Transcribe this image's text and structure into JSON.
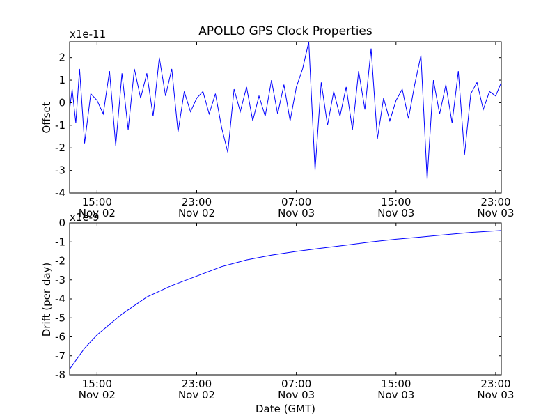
{
  "chart_data": [
    {
      "type": "line",
      "title": "APOLLO GPS Clock Properties",
      "ylabel": "Offset",
      "xlabel": "",
      "offset_label": "x1e-11",
      "ylim": [
        -4,
        2.7
      ],
      "yticks": [
        -4,
        -3,
        -2,
        -1,
        0,
        1,
        2
      ],
      "ytick_labels": [
        "-4",
        "-3",
        "-2",
        "-1",
        "0",
        "1",
        "2"
      ],
      "xticks": [
        {
          "hours": 15,
          "time": "15:00",
          "date": "Nov 02"
        },
        {
          "hours": 23,
          "time": "23:00",
          "date": "Nov 02"
        },
        {
          "hours": 31,
          "time": "07:00",
          "date": "Nov 03"
        },
        {
          "hours": 39,
          "time": "15:00",
          "date": "Nov 03"
        },
        {
          "hours": 47,
          "time": "23:00",
          "date": "Nov 03"
        }
      ],
      "xlim_hours": [
        12.8,
        47.45
      ],
      "series": [
        {
          "name": "offset",
          "color": "#0000ff",
          "x_hours": [
            12.8,
            13.0,
            13.3,
            13.6,
            14.0,
            14.5,
            15.0,
            15.5,
            16.0,
            16.5,
            17.0,
            17.5,
            18.0,
            18.5,
            19.0,
            19.5,
            20.0,
            20.5,
            21.0,
            21.5,
            22.0,
            22.5,
            23.0,
            23.5,
            24.0,
            24.5,
            25.0,
            25.5,
            26.0,
            26.5,
            27.0,
            27.5,
            28.0,
            28.5,
            29.0,
            29.5,
            30.0,
            30.5,
            31.0,
            31.5,
            32.0,
            32.5,
            33.0,
            33.5,
            34.0,
            34.5,
            35.0,
            35.5,
            36.0,
            36.5,
            37.0,
            37.5,
            38.0,
            38.5,
            39.0,
            39.5,
            40.0,
            40.5,
            41.0,
            41.5,
            42.0,
            42.5,
            43.0,
            43.5,
            44.0,
            44.5,
            45.0,
            45.5,
            46.0,
            46.5,
            47.0,
            47.45
          ],
          "values": [
            -0.3,
            0.6,
            -0.9,
            1.5,
            -1.8,
            0.4,
            0.1,
            -0.5,
            1.4,
            -1.9,
            1.3,
            -1.2,
            1.5,
            0.2,
            1.3,
            -0.6,
            2.0,
            0.3,
            1.5,
            -1.3,
            0.5,
            -0.4,
            0.2,
            0.5,
            -0.5,
            0.4,
            -1.1,
            -2.2,
            0.6,
            -0.4,
            0.7,
            -0.8,
            0.3,
            -0.6,
            1.0,
            -0.5,
            0.8,
            -0.8,
            0.7,
            1.5,
            2.7,
            -3.0,
            0.9,
            -1.0,
            0.5,
            -0.6,
            0.7,
            -1.2,
            1.4,
            -0.3,
            2.4,
            -1.6,
            0.2,
            -0.8,
            0.1,
            0.6,
            -0.7,
            0.8,
            2.1,
            -3.4,
            1.0,
            -0.5,
            0.8,
            -0.9,
            1.4,
            -2.3,
            0.4,
            0.9,
            -0.3,
            0.5,
            0.3,
            0.9
          ]
        }
      ]
    },
    {
      "type": "line",
      "title": "",
      "ylabel": "Drift (per day)",
      "xlabel": "Date (GMT)",
      "offset_label": "x1e-9",
      "ylim": [
        -8,
        0
      ],
      "yticks": [
        -8,
        -7,
        -6,
        -5,
        -4,
        -3,
        -2,
        -1,
        0
      ],
      "ytick_labels": [
        "-8",
        "-7",
        "-6",
        "-5",
        "-4",
        "-3",
        "-2",
        "-1",
        "0"
      ],
      "xticks": [
        {
          "hours": 15,
          "time": "15:00",
          "date": "Nov 02"
        },
        {
          "hours": 23,
          "time": "23:00",
          "date": "Nov 02"
        },
        {
          "hours": 31,
          "time": "07:00",
          "date": "Nov 03"
        },
        {
          "hours": 39,
          "time": "15:00",
          "date": "Nov 03"
        },
        {
          "hours": 47,
          "time": "23:00",
          "date": "Nov 03"
        }
      ],
      "xlim_hours": [
        12.8,
        47.45
      ],
      "series": [
        {
          "name": "drift",
          "color": "#0000ff",
          "x_hours": [
            12.8,
            14.0,
            15.0,
            17.0,
            19.0,
            21.0,
            23.0,
            25.0,
            27.0,
            29.0,
            31.0,
            33.0,
            35.0,
            37.0,
            39.0,
            41.0,
            43.0,
            45.0,
            47.45
          ],
          "values": [
            -7.7,
            -6.6,
            -5.9,
            -4.8,
            -3.9,
            -3.3,
            -2.8,
            -2.3,
            -1.95,
            -1.7,
            -1.5,
            -1.33,
            -1.17,
            -1.0,
            -0.86,
            -0.74,
            -0.62,
            -0.5,
            -0.4
          ]
        }
      ]
    }
  ]
}
